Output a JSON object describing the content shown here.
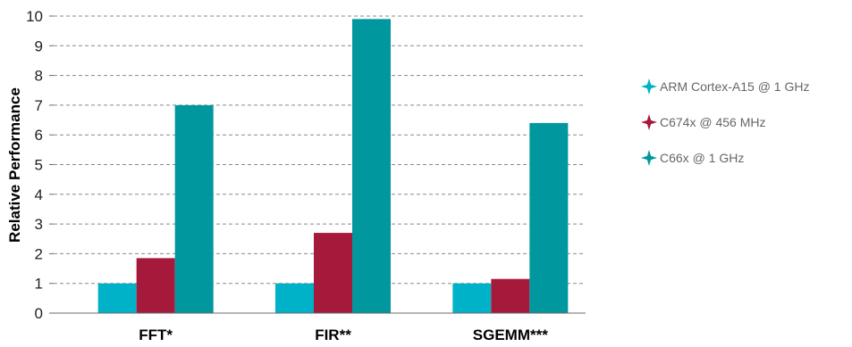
{
  "chart_data": {
    "type": "bar",
    "categories": [
      "FFT*",
      "FIR**",
      "SGEMM***"
    ],
    "series": [
      {
        "name": "ARM Cortex-A15 @ 1 GHz",
        "values": [
          1,
          1,
          1
        ],
        "color": "#00b2c8",
        "marker": "star-icon"
      },
      {
        "name": "C674x @ 456 MHz",
        "values": [
          1.85,
          2.7,
          1.15
        ],
        "color": "#a5193a",
        "marker": "star-icon"
      },
      {
        "name": "C66x @ 1 GHz",
        "values": [
          7.0,
          9.9,
          6.4
        ],
        "color": "#00979e",
        "marker": "star-icon"
      }
    ],
    "title": "",
    "xlabel": "",
    "ylabel": "Relative Performance",
    "ylim": [
      0,
      10
    ],
    "yticks": [
      "0",
      "1",
      "2",
      "3",
      "4",
      "5",
      "6",
      "7",
      "8",
      "9",
      "10"
    ],
    "grid": true,
    "legend_position": "right"
  }
}
